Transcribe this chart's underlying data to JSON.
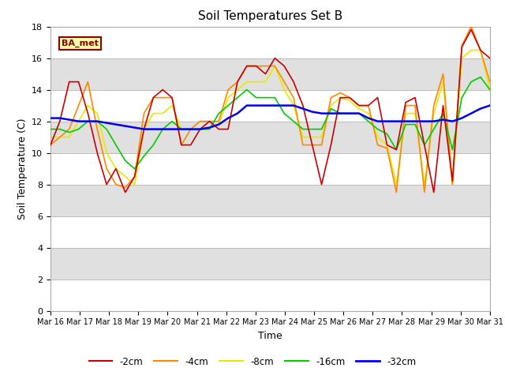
{
  "title": "Soil Temperatures Set B",
  "xlabel": "Time",
  "ylabel": "Soil Temperature (C)",
  "ylim": [
    0,
    18
  ],
  "yticks": [
    0,
    2,
    4,
    6,
    8,
    10,
    12,
    14,
    16,
    18
  ],
  "x_labels": [
    "Mar 16",
    "Mar 17",
    "Mar 18",
    "Mar 19",
    "Mar 20",
    "Mar 21",
    "Mar 22",
    "Mar 23",
    "Mar 24",
    "Mar 25",
    "Mar 26",
    "Mar 27",
    "Mar 28",
    "Mar 29",
    "Mar 30",
    "Mar 31"
  ],
  "colors": {
    "-2cm": "#cc0000",
    "-4cm": "#ff8800",
    "-8cm": "#e8e800",
    "-16cm": "#00cc00",
    "-32cm": "#0000ee"
  },
  "legend_label": "BA_met",
  "n_days": 15,
  "n_pts": 48,
  "d2cm": [
    10.5,
    12.0,
    14.5,
    14.5,
    12.5,
    10.0,
    8.0,
    9.0,
    7.5,
    8.5,
    11.5,
    13.5,
    14.0,
    13.5,
    10.5,
    10.5,
    11.5,
    12.0,
    11.5,
    11.5,
    14.5,
    15.5,
    15.5,
    15.0,
    16.0,
    15.5,
    14.5,
    13.0,
    10.5,
    8.0,
    10.5,
    13.5,
    13.5,
    13.0,
    13.0,
    13.5,
    10.5,
    10.2,
    13.2,
    13.5,
    10.5,
    7.5,
    13.0,
    8.2,
    16.7,
    17.8,
    16.5,
    16.0
  ],
  "d4cm": [
    10.5,
    11.0,
    11.5,
    13.0,
    14.5,
    11.5,
    9.0,
    8.0,
    7.8,
    8.5,
    12.5,
    13.5,
    13.5,
    13.5,
    10.5,
    11.5,
    12.0,
    12.0,
    12.0,
    14.0,
    14.5,
    15.5,
    15.5,
    15.5,
    15.5,
    14.5,
    13.5,
    10.5,
    10.5,
    10.5,
    13.5,
    13.8,
    13.5,
    13.0,
    13.0,
    10.5,
    10.3,
    7.5,
    13.0,
    13.0,
    7.5,
    13.0,
    15.0,
    8.0,
    16.8,
    18.0,
    16.5,
    14.5
  ],
  "d8cm": [
    11.0,
    11.0,
    11.0,
    12.0,
    13.0,
    12.5,
    10.0,
    9.0,
    8.5,
    8.0,
    11.5,
    12.5,
    12.5,
    13.0,
    11.5,
    11.5,
    11.5,
    11.5,
    11.8,
    13.5,
    14.0,
    14.5,
    14.5,
    14.5,
    15.5,
    14.0,
    13.0,
    11.0,
    11.0,
    11.0,
    13.0,
    13.5,
    13.3,
    12.8,
    12.5,
    11.0,
    10.5,
    8.0,
    12.5,
    12.5,
    8.0,
    12.5,
    14.5,
    8.0,
    16.0,
    16.5,
    16.5,
    14.0
  ],
  "d16cm": [
    11.5,
    11.5,
    11.3,
    11.5,
    12.0,
    12.0,
    11.5,
    10.5,
    9.5,
    9.0,
    9.8,
    10.5,
    11.5,
    12.0,
    11.5,
    11.5,
    11.5,
    11.5,
    12.5,
    13.0,
    13.5,
    14.0,
    13.5,
    13.5,
    13.5,
    12.5,
    12.0,
    11.5,
    11.5,
    11.5,
    12.8,
    12.5,
    12.5,
    12.5,
    12.0,
    11.5,
    11.2,
    10.2,
    11.8,
    11.8,
    10.5,
    11.5,
    12.5,
    10.2,
    13.5,
    14.5,
    14.8,
    14.0
  ],
  "d32cm": [
    12.2,
    12.2,
    12.1,
    12.0,
    12.0,
    12.0,
    11.9,
    11.8,
    11.7,
    11.6,
    11.5,
    11.5,
    11.5,
    11.5,
    11.5,
    11.5,
    11.5,
    11.6,
    11.8,
    12.2,
    12.5,
    13.0,
    13.0,
    13.0,
    13.0,
    13.0,
    13.0,
    12.8,
    12.6,
    12.5,
    12.5,
    12.5,
    12.5,
    12.5,
    12.2,
    12.0,
    12.0,
    12.0,
    12.0,
    12.0,
    12.0,
    12.0,
    12.1,
    12.0,
    12.2,
    12.5,
    12.8,
    13.0
  ]
}
